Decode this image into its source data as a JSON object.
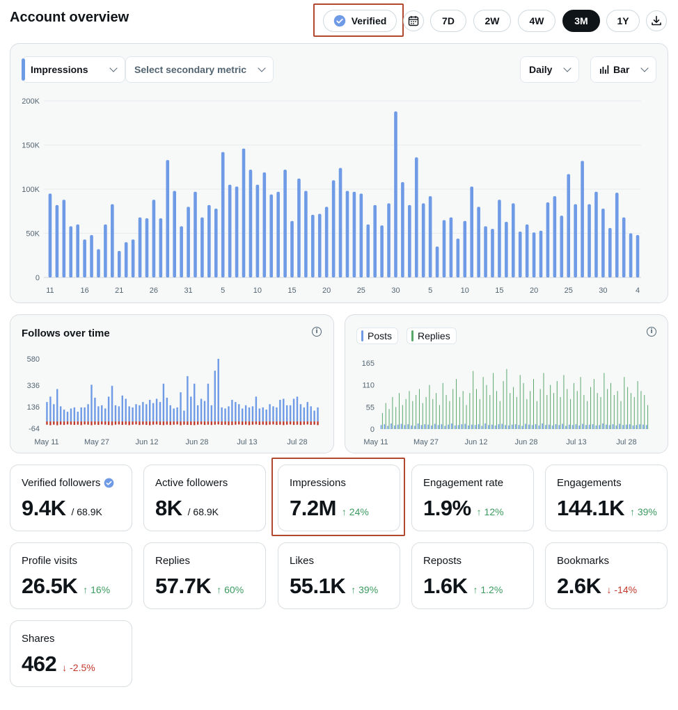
{
  "header": {
    "title": "Account overview",
    "verified_label": "Verified",
    "ranges": [
      "7D",
      "2W",
      "4W",
      "3M",
      "1Y"
    ],
    "active_range": "3M"
  },
  "main_chart": {
    "primary_metric": "Impressions",
    "secondary_metric_placeholder": "Select secondary metric",
    "interval": "Daily",
    "chart_type_label": "Bar"
  },
  "follows_panel": {
    "title": "Follows over time"
  },
  "posts_panel": {
    "legend": [
      "Posts",
      "Replies"
    ]
  },
  "cards": [
    {
      "label": "Verified followers",
      "value": "9.4K",
      "sub": "/ 68.9K",
      "verified": true
    },
    {
      "label": "Active followers",
      "value": "8K",
      "sub": "/ 68.9K"
    },
    {
      "label": "Impressions",
      "value": "7.2M",
      "change": "24%",
      "dir": "up"
    },
    {
      "label": "Engagement rate",
      "value": "1.9%",
      "change": "12%",
      "dir": "up"
    },
    {
      "label": "Engagements",
      "value": "144.1K",
      "change": "39%",
      "dir": "up"
    },
    {
      "label": "Profile visits",
      "value": "26.5K",
      "change": "16%",
      "dir": "up"
    },
    {
      "label": "Replies",
      "value": "57.7K",
      "change": "60%",
      "dir": "up"
    },
    {
      "label": "Likes",
      "value": "55.1K",
      "change": "39%",
      "dir": "up"
    },
    {
      "label": "Reposts",
      "value": "1.6K",
      "change": "1.2%",
      "dir": "up"
    },
    {
      "label": "Bookmarks",
      "value": "2.6K",
      "change": "-14%",
      "dir": "down"
    },
    {
      "label": "Shares",
      "value": "462",
      "change": "-2.5%",
      "dir": "down"
    }
  ],
  "colors": {
    "bar": "#6e9ae6",
    "follows_pos": "#6e9ae6",
    "follows_neg": "#c0392b",
    "replies": "#5aa76a",
    "highlight": "#b0482f"
  },
  "chart_data": [
    {
      "type": "bar",
      "name": "impressions",
      "x_tick_labels": [
        "11",
        "16",
        "21",
        "26",
        "31",
        "5",
        "10",
        "15",
        "20",
        "25",
        "30",
        "5",
        "10",
        "15",
        "20",
        "25",
        "30",
        "4"
      ],
      "y_tick_labels": [
        "0",
        "50K",
        "100K",
        "150K",
        "200K"
      ],
      "ylim": [
        0,
        200000
      ],
      "values": [
        95000,
        82000,
        88000,
        58000,
        60000,
        43000,
        48000,
        32000,
        60000,
        83000,
        30000,
        40000,
        43000,
        68000,
        67000,
        88000,
        67000,
        133000,
        98000,
        58000,
        80000,
        97000,
        68000,
        82000,
        78000,
        142000,
        105000,
        103000,
        146000,
        122000,
        105000,
        119000,
        94000,
        97000,
        122000,
        64000,
        112000,
        98000,
        71000,
        72000,
        80000,
        110000,
        124000,
        98000,
        97000,
        95000,
        60000,
        82000,
        59000,
        84000,
        188000,
        108000,
        82000,
        136000,
        84000,
        92000,
        35000,
        65000,
        68000,
        44000,
        64000,
        103000,
        80000,
        58000,
        55000,
        88000,
        63000,
        84000,
        52000,
        60000,
        51000,
        53000,
        85000,
        92000,
        70000,
        117000,
        83000,
        132000,
        83000,
        97000,
        78000,
        56000,
        96000,
        68000,
        50000,
        48000
      ],
      "grid": true,
      "legend": "none"
    },
    {
      "type": "bar",
      "name": "follows",
      "x_tick_labels": [
        "May 11",
        "May 27",
        "Jun 12",
        "Jun 28",
        "Jul 13",
        "Jul 28"
      ],
      "y_tick_labels": [
        "580",
        "336",
        "136",
        "-64"
      ],
      "ylim": [
        -64,
        580
      ],
      "pos": [
        180,
        230,
        160,
        300,
        140,
        110,
        90,
        120,
        130,
        90,
        130,
        130,
        160,
        340,
        220,
        140,
        150,
        120,
        230,
        330,
        150,
        140,
        240,
        210,
        140,
        130,
        160,
        150,
        180,
        160,
        200,
        170,
        210,
        180,
        350,
        220,
        150,
        120,
        130,
        270,
        100,
        420,
        230,
        350,
        150,
        210,
        190,
        350,
        150,
        470,
        580,
        130,
        120,
        140,
        200,
        180,
        160,
        120,
        150,
        130,
        140,
        230,
        120,
        130,
        110,
        160,
        140,
        130,
        200,
        210,
        150,
        150,
        210,
        230,
        160,
        130,
        180,
        140,
        100,
        130
      ],
      "neg": [
        -30,
        -35,
        -30,
        -35,
        -30,
        -32,
        -28,
        -30,
        -32,
        -30,
        -34,
        -28,
        -30,
        -35,
        -30,
        -32,
        -28,
        -30,
        -33,
        -35,
        -30,
        -28,
        -32,
        -30,
        -34,
        -30,
        -28,
        -33,
        -30,
        -32,
        -35,
        -30,
        -28,
        -32,
        -34,
        -30,
        -33,
        -30,
        -28,
        -35,
        -30,
        -32,
        -33,
        -34,
        -30,
        -28,
        -32,
        -30,
        -33,
        -30,
        -28,
        -32,
        -30,
        -34,
        -33,
        -30,
        -28,
        -32,
        -30,
        -34,
        -30,
        -28,
        -32,
        -30,
        -33,
        -30,
        -28,
        -32,
        -30,
        -34,
        -30,
        -28,
        -32,
        -30,
        -33,
        -30,
        -28,
        -32,
        -30,
        -34
      ],
      "grid": false,
      "legend": "none"
    },
    {
      "type": "bar",
      "name": "posts-replies",
      "x_tick_labels": [
        "May 11",
        "May 27",
        "Jun 12",
        "Jun 28",
        "Jul 13",
        "Jul 28"
      ],
      "y_tick_labels": [
        "165",
        "110",
        "55",
        "0"
      ],
      "ylim": [
        0,
        165
      ],
      "series": [
        {
          "name": "Posts",
          "values": [
            10,
            12,
            8,
            14,
            9,
            11,
            13,
            10,
            12,
            9,
            8,
            14,
            10,
            12,
            11,
            9,
            13,
            10,
            12,
            8,
            11,
            14,
            9,
            10,
            12,
            13,
            9,
            11,
            10,
            12,
            8,
            14,
            10,
            11,
            9,
            12,
            13,
            10,
            9,
            11,
            12,
            10,
            8,
            13,
            11,
            10,
            12,
            9,
            14,
            10,
            11,
            9,
            12,
            10,
            13,
            8,
            11,
            10,
            12,
            9,
            13,
            10,
            11,
            12,
            9,
            10,
            14,
            11,
            10,
            12,
            9,
            13,
            10,
            11,
            12,
            9,
            10,
            12,
            11,
            10
          ]
        },
        {
          "name": "Replies",
          "values": [
            40,
            65,
            50,
            80,
            55,
            90,
            60,
            75,
            95,
            70,
            85,
            100,
            65,
            80,
            110,
            75,
            90,
            60,
            115,
            85,
            70,
            100,
            125,
            80,
            95,
            60,
            90,
            145,
            100,
            75,
            130,
            110,
            85,
            140,
            95,
            70,
            120,
            150,
            90,
            105,
            80,
            135,
            115,
            75,
            95,
            125,
            70,
            100,
            140,
            85,
            110,
            90,
            120,
            80,
            135,
            100,
            75,
            115,
            95,
            130,
            85,
            70,
            105,
            125,
            90,
            80,
            140,
            100,
            115,
            85,
            95,
            70,
            130,
            105,
            90,
            80,
            120,
            95,
            85,
            60
          ]
        }
      ],
      "grid": false,
      "legend": "top-left"
    }
  ]
}
